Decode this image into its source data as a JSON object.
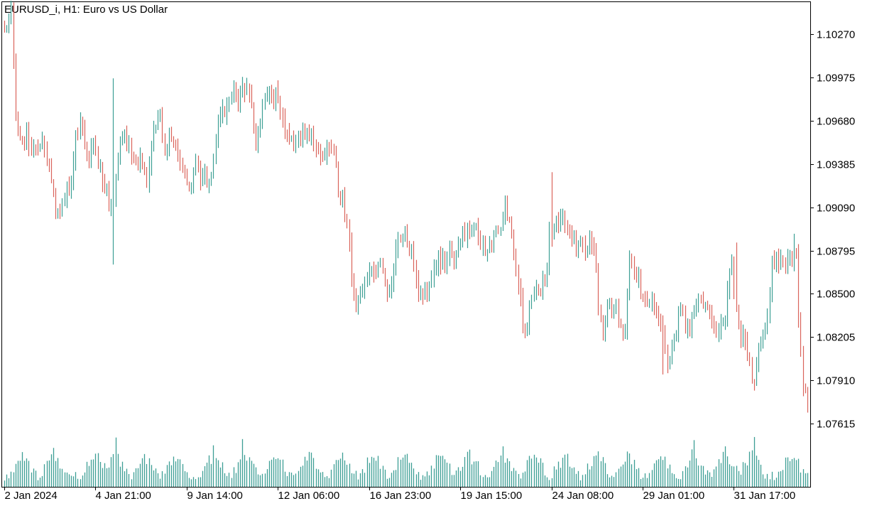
{
  "symbol_label": "EURUSD_i, H1:  Euro vs US Dollar",
  "colors": {
    "background": "#ffffff",
    "frame": "#000000",
    "bull": "#3d9f95",
    "bear": "#d9635b",
    "volume": "#3d9f95",
    "text": "#000000"
  },
  "chart_data": {
    "type": "line",
    "y_axis_side": "right",
    "ylim": [
      1.0746,
      1.1049
    ],
    "y_ticks": [
      {
        "label": "1.10270",
        "value": 1.1027
      },
      {
        "label": "1.09975",
        "value": 1.09975
      },
      {
        "label": "1.09680",
        "value": 1.0968
      },
      {
        "label": "1.09385",
        "value": 1.09385
      },
      {
        "label": "1.09090",
        "value": 1.0909
      },
      {
        "label": "1.08795",
        "value": 1.08795
      },
      {
        "label": "1.08500",
        "value": 1.085
      },
      {
        "label": "1.08205",
        "value": 1.08205
      },
      {
        "label": "1.07910",
        "value": 1.0791
      },
      {
        "label": "1.07615",
        "value": 1.07615
      }
    ],
    "x_ticks": [
      {
        "label": "2 Jan 2024",
        "index": 0
      },
      {
        "label": "4 Jan 21:00",
        "index": 41
      },
      {
        "label": "9 Jan 14:00",
        "index": 82
      },
      {
        "label": "12 Jan 06:00",
        "index": 123
      },
      {
        "label": "16 Jan 23:00",
        "index": 164
      },
      {
        "label": "19 Jan 15:00",
        "index": 205
      },
      {
        "label": "24 Jan 08:00",
        "index": 246
      },
      {
        "label": "29 Jan 01:00",
        "index": 287
      },
      {
        "label": "31 Jan 17:00",
        "index": 328
      }
    ],
    "bar_count": 362,
    "waypoints": [
      [
        0,
        1.103
      ],
      [
        3,
        1.104
      ],
      [
        5,
        1.0975
      ],
      [
        6,
        1.0965
      ],
      [
        8,
        1.095
      ],
      [
        10,
        1.096
      ],
      [
        12,
        1.0945
      ],
      [
        15,
        1.0955
      ],
      [
        18,
        1.095
      ],
      [
        20,
        1.0935
      ],
      [
        22,
        1.0915
      ],
      [
        24,
        1.0905
      ],
      [
        26,
        1.0915
      ],
      [
        28,
        1.0925
      ],
      [
        30,
        1.093
      ],
      [
        32,
        1.0955
      ],
      [
        34,
        1.097
      ],
      [
        36,
        1.0955
      ],
      [
        38,
        1.0945
      ],
      [
        40,
        1.095
      ],
      [
        42,
        1.094
      ],
      [
        45,
        1.0925
      ],
      [
        48,
        1.0905
      ],
      [
        50,
        1.0925
      ],
      [
        52,
        1.096
      ],
      [
        55,
        1.095
      ],
      [
        58,
        1.0945
      ],
      [
        60,
        1.0935
      ],
      [
        62,
        1.094
      ],
      [
        64,
        1.093
      ],
      [
        66,
        1.0955
      ],
      [
        68,
        1.0965
      ],
      [
        70,
        1.097
      ],
      [
        72,
        1.095
      ],
      [
        75,
        1.096
      ],
      [
        78,
        1.0945
      ],
      [
        80,
        1.094
      ],
      [
        82,
        1.092
      ],
      [
        84,
        1.0925
      ],
      [
        86,
        1.0935
      ],
      [
        90,
        1.093
      ],
      [
        92,
        1.0925
      ],
      [
        94,
        1.0945
      ],
      [
        96,
        1.096
      ],
      [
        98,
        1.0975
      ],
      [
        100,
        1.098
      ],
      [
        102,
        1.099
      ],
      [
        104,
        1.0985
      ],
      [
        106,
        1.0985
      ],
      [
        108,
        1.099
      ],
      [
        110,
        1.0985
      ],
      [
        113,
        1.095
      ],
      [
        116,
        1.0975
      ],
      [
        118,
        1.0985
      ],
      [
        120,
        1.098
      ],
      [
        122,
        1.0985
      ],
      [
        124,
        1.097
      ],
      [
        126,
        1.096
      ],
      [
        128,
        1.0955
      ],
      [
        130,
        1.095
      ],
      [
        132,
        1.0955
      ],
      [
        134,
        1.0965
      ],
      [
        136,
        1.0955
      ],
      [
        138,
        1.096
      ],
      [
        140,
        1.095
      ],
      [
        142,
        1.0945
      ],
      [
        144,
        1.095
      ],
      [
        146,
        1.0955
      ],
      [
        148,
        1.095
      ],
      [
        150,
        1.092
      ],
      [
        152,
        1.0915
      ],
      [
        154,
        1.09
      ],
      [
        156,
        1.086
      ],
      [
        158,
        1.0845
      ],
      [
        160,
        1.085
      ],
      [
        162,
        1.086
      ],
      [
        164,
        1.0865
      ],
      [
        166,
        1.086
      ],
      [
        168,
        1.087
      ],
      [
        170,
        1.086
      ],
      [
        172,
        1.085
      ],
      [
        174,
        1.0855
      ],
      [
        176,
        1.088
      ],
      [
        178,
        1.089
      ],
      [
        180,
        1.0895
      ],
      [
        182,
        1.0885
      ],
      [
        185,
        1.086
      ],
      [
        188,
        1.0845
      ],
      [
        190,
        1.0855
      ],
      [
        192,
        1.086
      ],
      [
        194,
        1.087
      ],
      [
        196,
        1.0875
      ],
      [
        198,
        1.087
      ],
      [
        200,
        1.088
      ],
      [
        202,
        1.0875
      ],
      [
        205,
        1.0885
      ],
      [
        207,
        1.089
      ],
      [
        209,
        1.0895
      ],
      [
        211,
        1.0895
      ],
      [
        213,
        1.089
      ],
      [
        215,
        1.0885
      ],
      [
        217,
        1.088
      ],
      [
        219,
        1.088
      ],
      [
        222,
        1.0895
      ],
      [
        225,
        1.0905
      ],
      [
        227,
        1.0895
      ],
      [
        229,
        1.0875
      ],
      [
        231,
        1.086
      ],
      [
        233,
        1.083
      ],
      [
        234,
        1.082
      ],
      [
        236,
        1.084
      ],
      [
        238,
        1.085
      ],
      [
        240,
        1.0855
      ],
      [
        243,
        1.086
      ],
      [
        245,
        1.089
      ],
      [
        247,
        1.0895
      ],
      [
        249,
        1.09
      ],
      [
        251,
        1.0905
      ],
      [
        253,
        1.09
      ],
      [
        255,
        1.089
      ],
      [
        257,
        1.0885
      ],
      [
        259,
        1.088
      ],
      [
        261,
        1.0885
      ],
      [
        263,
        1.089
      ],
      [
        265,
        1.0885
      ],
      [
        267,
        1.084
      ],
      [
        269,
        1.083
      ],
      [
        271,
        1.084
      ],
      [
        273,
        1.0845
      ],
      [
        275,
        1.084
      ],
      [
        277,
        1.083
      ],
      [
        279,
        1.0825
      ],
      [
        281,
        1.087
      ],
      [
        283,
        1.0865
      ],
      [
        285,
        1.086
      ],
      [
        287,
        1.0845
      ],
      [
        290,
        1.0845
      ],
      [
        292,
        1.0845
      ],
      [
        294,
        1.0835
      ],
      [
        296,
        1.082
      ],
      [
        298,
        1.0805
      ],
      [
        300,
        1.081
      ],
      [
        302,
        1.0825
      ],
      [
        304,
        1.0835
      ],
      [
        306,
        1.083
      ],
      [
        308,
        1.0825
      ],
      [
        310,
        1.0835
      ],
      [
        312,
        1.0845
      ],
      [
        314,
        1.084
      ],
      [
        316,
        1.0845
      ],
      [
        318,
        1.0835
      ],
      [
        320,
        1.082
      ],
      [
        322,
        1.0825
      ],
      [
        324,
        1.0835
      ],
      [
        326,
        1.086
      ],
      [
        327,
        1.087
      ],
      [
        329,
        1.084
      ],
      [
        331,
        1.082
      ],
      [
        333,
        1.0815
      ],
      [
        335,
        1.08
      ],
      [
        337,
        1.079
      ],
      [
        339,
        1.081
      ],
      [
        341,
        1.082
      ],
      [
        343,
        1.083
      ],
      [
        345,
        1.087
      ],
      [
        348,
        1.087
      ],
      [
        351,
        1.087
      ],
      [
        354,
        1.0875
      ],
      [
        356,
        1.0875
      ],
      [
        357,
        1.083
      ],
      [
        358,
        1.081
      ],
      [
        359,
        1.079
      ],
      [
        360,
        1.078
      ],
      [
        361,
        1.0775
      ]
    ],
    "spikes": [
      {
        "index": 3,
        "high": 1.10375
      },
      {
        "index": 49,
        "high": 1.0997
      },
      {
        "index": 49,
        "low": 1.087
      },
      {
        "index": 107,
        "high": 1.0998
      },
      {
        "index": 234,
        "low": 1.082
      },
      {
        "index": 246,
        "high": 1.0933
      },
      {
        "index": 281,
        "high": 1.0877
      },
      {
        "index": 296,
        "low": 1.0795
      },
      {
        "index": 329,
        "high": 1.0885
      },
      {
        "index": 337,
        "low": 1.0784
      },
      {
        "index": 355,
        "high": 1.0891
      },
      {
        "index": 361,
        "low": 1.0769
      }
    ],
    "volume_peaks": [
      8,
      22,
      41,
      50,
      63,
      77,
      94,
      108,
      122,
      137,
      152,
      166,
      180,
      196,
      209,
      224,
      238,
      252,
      266,
      280,
      295,
      310,
      324,
      336,
      354
    ],
    "volume_tall": [
      {
        "index": 50,
        "level": 0.95
      },
      {
        "index": 107,
        "level": 0.92
      },
      {
        "index": 310,
        "level": 0.9
      },
      {
        "index": 337,
        "level": 0.96
      },
      {
        "index": 22,
        "level": 0.75
      },
      {
        "index": 94,
        "level": 0.8
      },
      {
        "index": 324,
        "level": 0.78
      }
    ]
  }
}
